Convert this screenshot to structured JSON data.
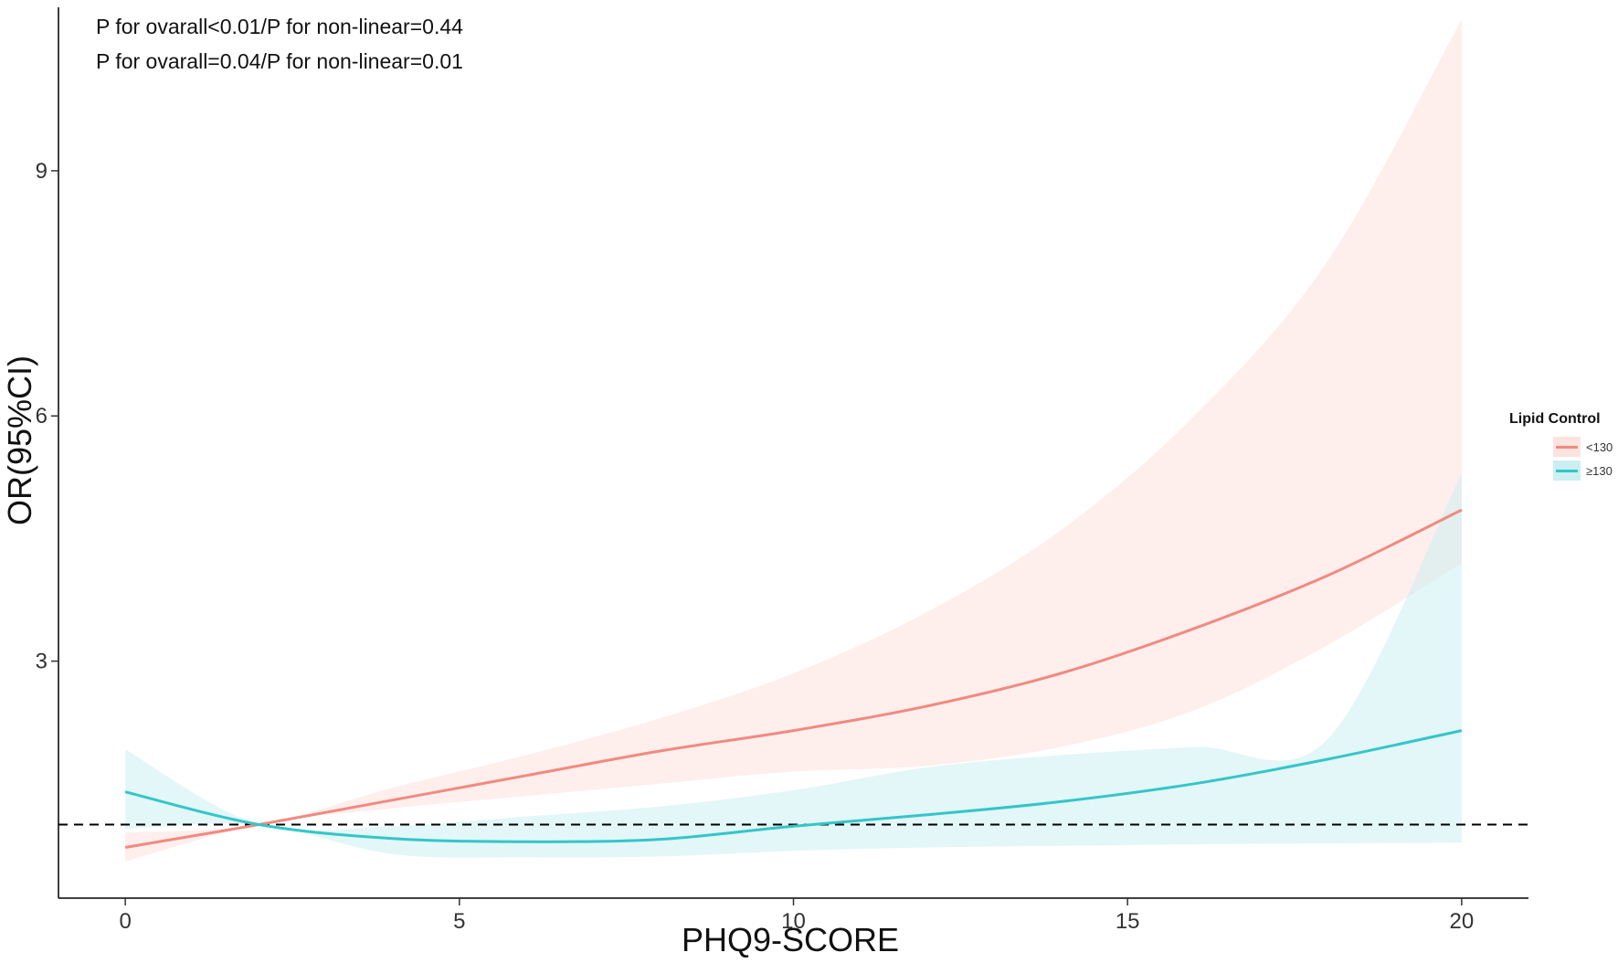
{
  "annotations": [
    "P for ovarall<0.01/P for non-linear=0.44",
    "P for ovarall=0.04/P for non-linear=0.01"
  ],
  "chart_data": {
    "type": "line",
    "xlabel": "PHQ9-SCORE",
    "ylabel": "OR(95%CI)",
    "xlim": [
      -1,
      21
    ],
    "ylim": [
      0.1,
      11.0
    ],
    "xticks": [
      0,
      5,
      10,
      15,
      20
    ],
    "yticks": [
      3,
      6,
      9
    ],
    "grid": false,
    "reference_line": {
      "y": 1.0,
      "style": "dashed",
      "color": "#000000"
    },
    "legend": {
      "title": "Lipid Control",
      "position": "right"
    },
    "x": [
      0,
      2,
      4,
      6,
      8,
      10,
      12,
      14,
      16,
      18,
      20
    ],
    "series": [
      {
        "name": "<130",
        "color": "#F08A80",
        "band_color": "#FDE3E0",
        "values": [
          0.72,
          1.0,
          1.3,
          1.6,
          1.9,
          2.15,
          2.45,
          2.85,
          3.4,
          4.05,
          4.85
        ],
        "lower": [
          0.55,
          1.0,
          1.2,
          1.35,
          1.5,
          1.65,
          1.72,
          1.95,
          2.4,
          3.2,
          4.2
        ],
        "upper": [
          0.9,
          1.0,
          1.45,
          1.85,
          2.3,
          2.85,
          3.6,
          4.6,
          6.0,
          7.9,
          10.85
        ]
      },
      {
        "name": "≥130",
        "color": "#33C6C8",
        "band_color": "#CCEFF2",
        "values": [
          1.4,
          1.0,
          0.83,
          0.79,
          0.82,
          0.98,
          1.12,
          1.28,
          1.5,
          1.8,
          2.15
        ],
        "lower": [
          0.95,
          1.0,
          0.64,
          0.6,
          0.61,
          0.68,
          0.72,
          0.74,
          0.76,
          0.77,
          0.78
        ],
        "upper": [
          1.92,
          1.0,
          0.98,
          1.1,
          1.22,
          1.42,
          1.7,
          1.85,
          1.95,
          2.05,
          5.3
        ]
      }
    ]
  }
}
